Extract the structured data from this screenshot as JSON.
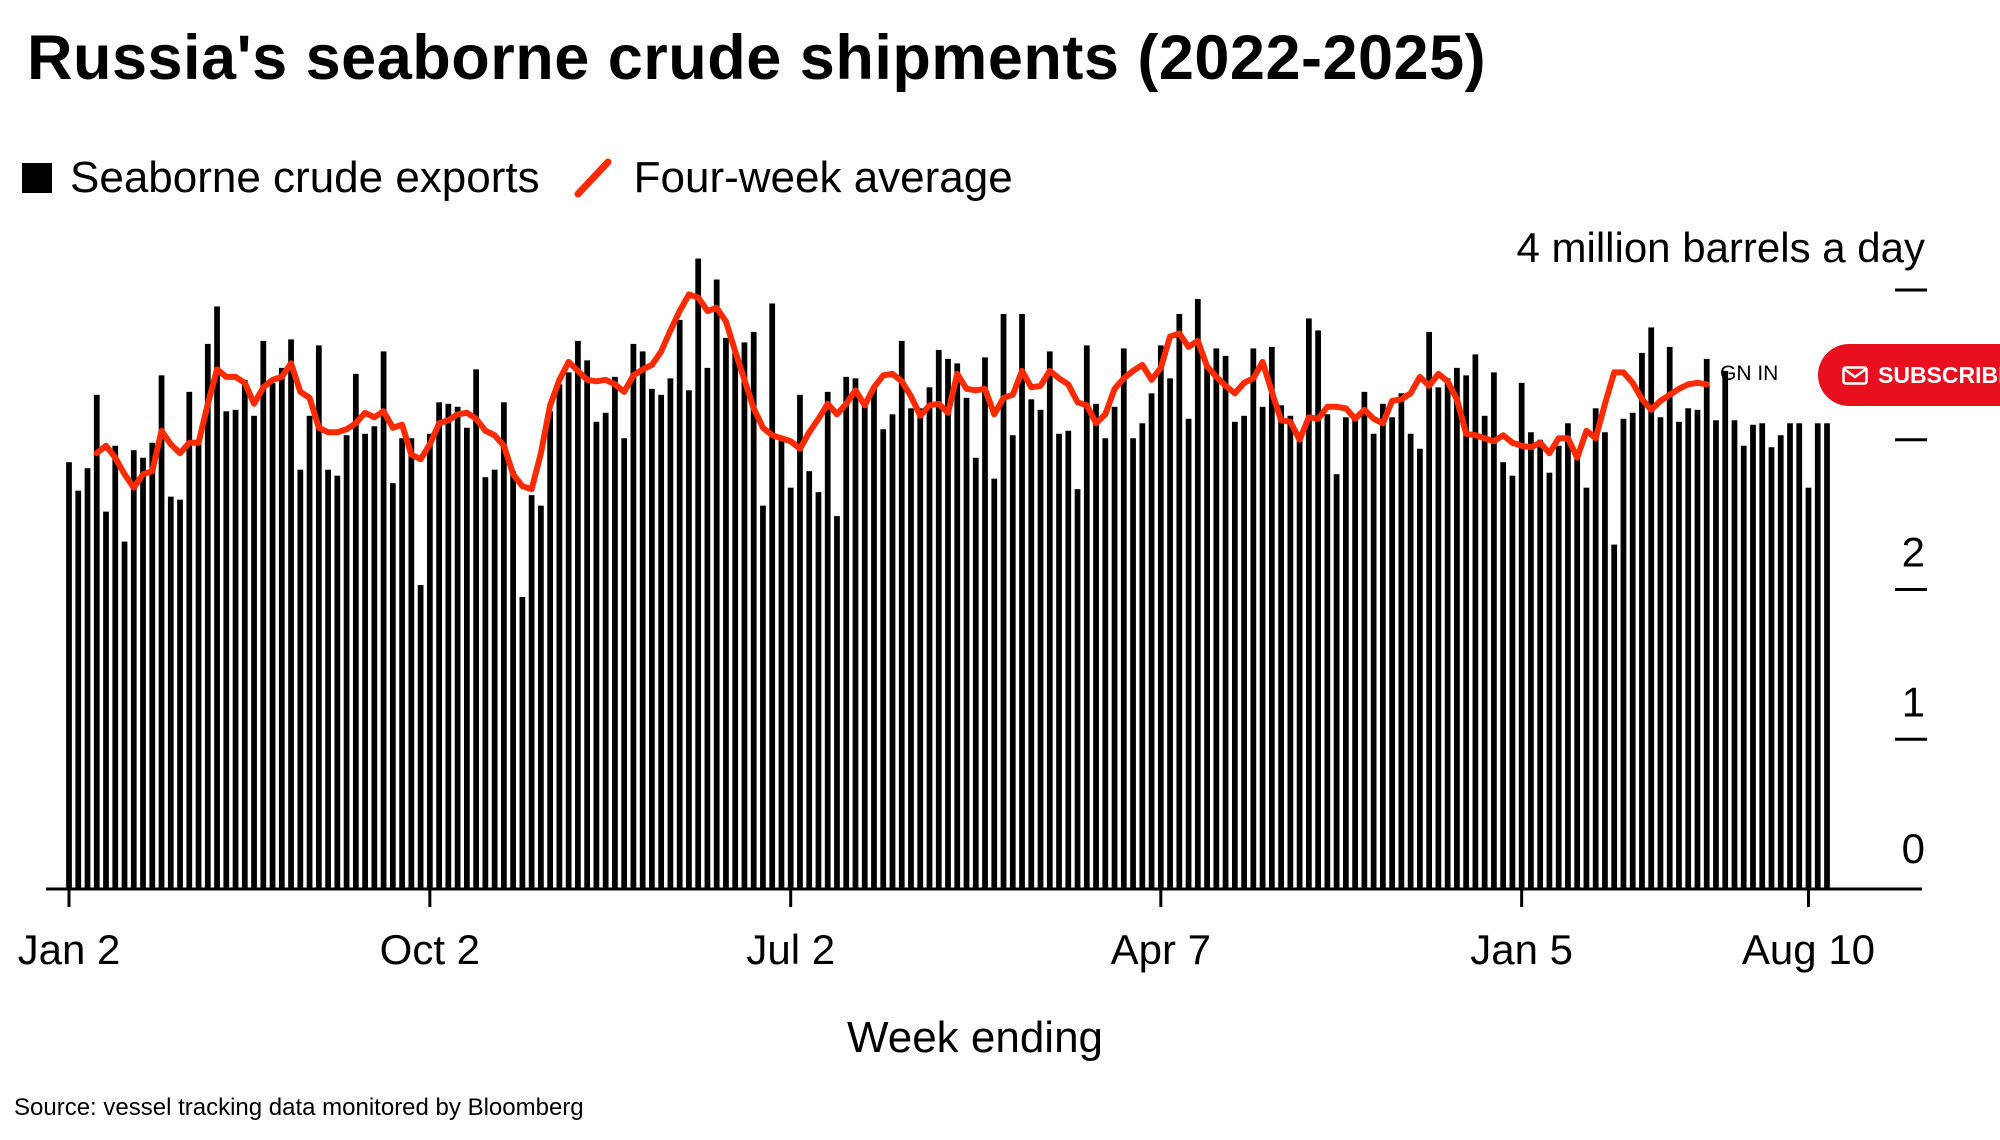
{
  "chart_data": {
    "type": "bar",
    "title": "Russia's seaborne crude shipments (2022-2025)",
    "xlabel": "Week ending",
    "ylabel": "",
    "unit_label": "4 million barrels a day",
    "ylim": [
      0,
      4
    ],
    "yticks": [
      0,
      1,
      2,
      3,
      4
    ],
    "ytick_labels": [
      "0",
      "1",
      "2",
      "",
      ""
    ],
    "xtick_labels": [
      "Jan 2",
      "Oct 2",
      "Jul 2",
      "Apr 7",
      "Jan 5",
      "Aug 10"
    ],
    "xtick_index": [
      0,
      39,
      78,
      118,
      157,
      188
    ],
    "grid": false,
    "legend_position": "top-left",
    "source": "Source: vessel tracking data monitored by Bloomberg",
    "series": [
      {
        "name": "Seaborne crude exports",
        "values": [
          2.85,
          2.66,
          2.81,
          3.3,
          2.52,
          2.96,
          2.32,
          2.93,
          2.88,
          2.98,
          3.43,
          2.62,
          2.6,
          3.32,
          2.97,
          3.64,
          3.89,
          3.19,
          3.2,
          3.4,
          3.16,
          3.66,
          3.38,
          3.48,
          3.67,
          2.8,
          3.16,
          3.63,
          2.8,
          2.76,
          3.03,
          3.44,
          3.04,
          3.09,
          3.59,
          2.71,
          3.01,
          3.01,
          2.03,
          3.04,
          3.25,
          3.24,
          3.22,
          3.08,
          3.47,
          2.75,
          2.8,
          3.25,
          2.79,
          1.95,
          2.63,
          2.56,
          3.19,
          3.37,
          3.45,
          3.66,
          3.53,
          3.12,
          3.18,
          3.42,
          3.01,
          3.64,
          3.59,
          3.34,
          3.3,
          3.41,
          3.8,
          3.33,
          4.21,
          3.48,
          4.07,
          3.68,
          3.58,
          3.65,
          3.72,
          2.56,
          3.91,
          3.02,
          2.68,
          3.3,
          2.79,
          2.65,
          3.32,
          2.49,
          3.42,
          3.41,
          3.25,
          3.35,
          3.07,
          3.17,
          3.66,
          3.21,
          3.21,
          3.35,
          3.6,
          3.54,
          3.51,
          3.28,
          2.88,
          3.55,
          2.74,
          3.84,
          3.03,
          3.84,
          3.27,
          3.2,
          3.59,
          3.04,
          3.06,
          2.67,
          3.63,
          3.24,
          3.01,
          3.22,
          3.61,
          3.01,
          3.11,
          3.31,
          3.63,
          3.41,
          3.84,
          3.14,
          3.94,
          3.49,
          3.61,
          3.56,
          3.12,
          3.16,
          3.61,
          3.22,
          3.62,
          3.23,
          3.16,
          3.05,
          3.81,
          3.73,
          3.17,
          2.77,
          3.15,
          3.17,
          3.32,
          3.04,
          3.24,
          3.15,
          3.31,
          3.04,
          2.94,
          3.72,
          3.35,
          3.41,
          3.48,
          3.43,
          3.57,
          3.16,
          3.45,
          2.85,
          2.76,
          3.38,
          3.05,
          3.0,
          2.78,
          2.96,
          3.11,
          2.9,
          2.68,
          3.21,
          3.05,
          2.3,
          3.14,
          3.18,
          3.58,
          3.75,
          3.15,
          3.62,
          3.12,
          3.21,
          3.2,
          3.54,
          3.13,
          3.46,
          3.13,
          2.96,
          3.1,
          3.11,
          2.95,
          3.03,
          3.11,
          3.11,
          2.68,
          3.11,
          3.11
        ]
      },
      {
        "name": "Four-week average",
        "values": [
          null,
          null,
          null,
          2.91,
          2.96,
          2.88,
          2.77,
          2.68,
          2.77,
          2.79,
          3.06,
          2.97,
          2.91,
          2.98,
          2.98,
          3.24,
          3.47,
          3.42,
          3.42,
          3.38,
          3.24,
          3.35,
          3.4,
          3.42,
          3.51,
          3.32,
          3.28,
          3.08,
          3.05,
          3.05,
          3.07,
          3.11,
          3.18,
          3.15,
          3.19,
          3.08,
          3.1,
          2.9,
          2.87,
          2.97,
          3.11,
          3.13,
          3.17,
          3.18,
          3.14,
          3.06,
          3.03,
          2.96,
          2.77,
          2.69,
          2.67,
          2.91,
          3.23,
          3.4,
          3.52,
          3.46,
          3.4,
          3.39,
          3.4,
          3.37,
          3.32,
          3.43,
          3.47,
          3.5,
          3.59,
          3.73,
          3.86,
          3.97,
          3.95,
          3.86,
          3.88,
          3.79,
          3.59,
          3.4,
          3.21,
          3.08,
          3.03,
          3.01,
          2.99,
          2.94,
          3.05,
          3.14,
          3.24,
          3.17,
          3.24,
          3.33,
          3.23,
          3.35,
          3.43,
          3.44,
          3.39,
          3.29,
          3.16,
          3.23,
          3.24,
          3.18,
          3.44,
          3.34,
          3.33,
          3.34,
          3.17,
          3.28,
          3.3,
          3.46,
          3.35,
          3.36,
          3.46,
          3.41,
          3.37,
          3.25,
          3.23,
          3.11,
          3.17,
          3.34,
          3.41,
          3.46,
          3.5,
          3.4,
          3.48,
          3.69,
          3.71,
          3.62,
          3.66,
          3.49,
          3.42,
          3.36,
          3.31,
          3.38,
          3.41,
          3.52,
          3.32,
          3.13,
          3.12,
          3.0,
          3.15,
          3.14,
          3.22,
          3.22,
          3.21,
          3.14,
          3.2,
          3.14,
          3.11,
          3.26,
          3.27,
          3.31,
          3.42,
          3.36,
          3.44,
          3.39,
          3.27,
          3.04,
          3.03,
          3.01,
          2.99,
          3.03,
          2.98,
          2.96,
          2.95,
          2.98,
          2.91,
          3.01,
          3.01,
          2.88,
          3.06,
          3.01,
          3.24,
          3.45,
          3.45,
          3.38,
          3.27,
          3.2,
          3.26,
          3.3,
          3.34,
          3.37,
          3.38,
          3.37,
          null,
          null,
          null,
          null,
          null,
          null,
          null,
          null,
          null,
          null
        ]
      }
    ]
  },
  "legend": {
    "bar_label": "Seaborne crude exports",
    "line_label": "Four-week average"
  },
  "overlay": {
    "signin_label": "GN IN",
    "subscribe_label": "SUBSCRIBE"
  },
  "colors": {
    "bars": "#000000",
    "line": "#ff2a00",
    "subscribe": "#e8101e"
  }
}
